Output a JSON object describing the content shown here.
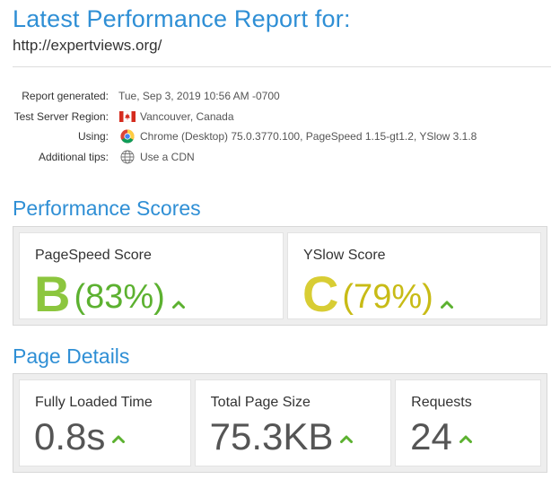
{
  "header": {
    "title": "Latest Performance Report for:",
    "url": "http://expertviews.org/"
  },
  "meta": {
    "rows": [
      {
        "label": "Report generated:",
        "value": "Tue, Sep 3, 2019 10:56 AM -0700",
        "icon": ""
      },
      {
        "label": "Test Server Region:",
        "value": "Vancouver, Canada",
        "icon": "canada-flag-icon"
      },
      {
        "label": "Using:",
        "value": "Chrome (Desktop) 75.0.3770.100, PageSpeed 1.15-gt1.2, YSlow 3.1.8",
        "icon": "chrome-icon"
      },
      {
        "label": "Additional tips:",
        "value": "Use a CDN",
        "icon": "globe-icon"
      }
    ]
  },
  "performance": {
    "title": "Performance Scores",
    "pagespeed": {
      "label": "PageSpeed Score",
      "grade": "B",
      "percent": "(83%)",
      "color": "#8cc63e",
      "trend": "up"
    },
    "yslow": {
      "label": "YSlow Score",
      "grade": "C",
      "percent": "(79%)",
      "color": "#d8cd34",
      "trend": "up"
    }
  },
  "details": {
    "title": "Page Details",
    "fully_loaded": {
      "label": "Fully Loaded Time",
      "value": "0.8s",
      "trend": "up"
    },
    "page_size": {
      "label": "Total Page Size",
      "value": "75.3KB",
      "trend": "up"
    },
    "requests": {
      "label": "Requests",
      "value": "24",
      "trend": "up"
    }
  },
  "colors": {
    "accent": "#2f8fd5",
    "trend_up": "#5cb130"
  }
}
